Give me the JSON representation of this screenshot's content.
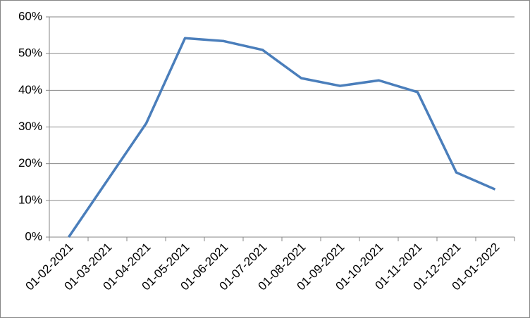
{
  "chart_data": {
    "type": "line",
    "categories": [
      "01-02-2021",
      "01-03-2021",
      "01-04-2021",
      "01-05-2021",
      "01-06-2021",
      "01-07-2021",
      "01-08-2021",
      "01-09-2021",
      "01-10-2021",
      "01-11-2021",
      "01-12-2021",
      "01-01-2022"
    ],
    "values": [
      0,
      15.5,
      31,
      54.2,
      53.4,
      51,
      43.3,
      41.2,
      42.7,
      39.5,
      17.6,
      13
    ],
    "color": "#4a7ebb",
    "ylim": [
      0,
      60
    ],
    "yticks": [
      {
        "value": 0,
        "label": "0%"
      },
      {
        "value": 10,
        "label": "10%"
      },
      {
        "value": 20,
        "label": "20%"
      },
      {
        "value": 30,
        "label": "30%"
      },
      {
        "value": 40,
        "label": "40%"
      },
      {
        "value": 50,
        "label": "50%"
      },
      {
        "value": 60,
        "label": "60%"
      }
    ],
    "grid": true
  }
}
